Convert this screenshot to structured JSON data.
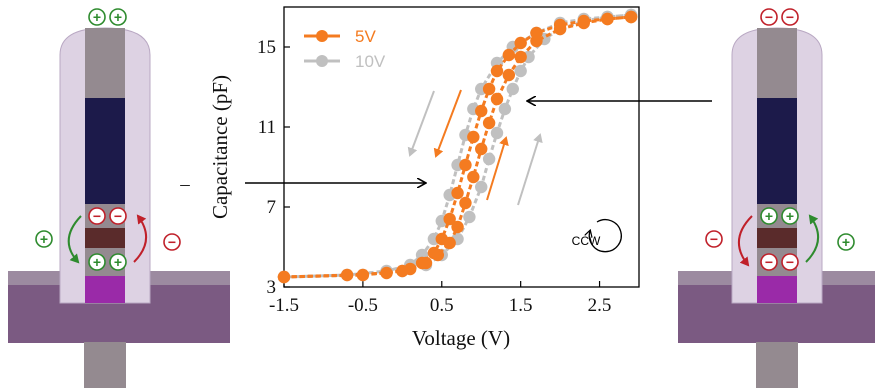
{
  "chart_data": {
    "type": "line",
    "title": "",
    "xlabel": "Voltage (V)",
    "ylabel": "Capacitance (pF)",
    "xlim": [
      -1.5,
      3.0
    ],
    "ylim": [
      3,
      17
    ],
    "xticks": [
      "-1.5",
      "-0.5",
      "0.5",
      "1.5",
      "2.5"
    ],
    "yticks": [
      "3",
      "7",
      "11",
      "15"
    ],
    "grid": false,
    "legend_position": "top-left",
    "annotation": "CCW",
    "series": [
      {
        "name": "5V",
        "color": "#f47b20",
        "x_sweep_up": [
          -1.5,
          -0.7,
          -0.2,
          0.1,
          0.3,
          0.45,
          0.6,
          0.7,
          0.8,
          0.9,
          1.0,
          1.1,
          1.2,
          1.35,
          1.5,
          1.7,
          2.0,
          2.3,
          2.6,
          2.9
        ],
        "y_sweep_up": [
          3.5,
          3.6,
          3.7,
          3.9,
          4.2,
          4.6,
          5.2,
          6.0,
          7.2,
          8.5,
          9.9,
          11.2,
          12.4,
          13.6,
          14.5,
          15.3,
          15.9,
          16.2,
          16.4,
          16.5
        ],
        "x_sweep_down": [
          2.9,
          2.6,
          2.3,
          2.0,
          1.7,
          1.5,
          1.35,
          1.2,
          1.1,
          1.0,
          0.9,
          0.8,
          0.7,
          0.6,
          0.5,
          0.4,
          0.25,
          0.0,
          -0.5,
          -1.5
        ],
        "y_sweep_down": [
          16.5,
          16.4,
          16.3,
          16.1,
          15.7,
          15.2,
          14.6,
          13.8,
          12.9,
          11.8,
          10.5,
          9.1,
          7.7,
          6.4,
          5.4,
          4.7,
          4.2,
          3.8,
          3.6,
          3.5
        ]
      },
      {
        "name": "10V",
        "color": "#c0c0c0",
        "x_sweep_up": [
          -1.5,
          -0.5,
          0.0,
          0.3,
          0.5,
          0.7,
          0.85,
          1.0,
          1.1,
          1.2,
          1.3,
          1.4,
          1.5,
          1.6,
          1.8,
          2.0,
          2.3,
          2.6,
          2.9
        ],
        "y_sweep_up": [
          3.5,
          3.6,
          3.8,
          4.1,
          4.6,
          5.4,
          6.5,
          8.0,
          9.4,
          10.7,
          11.9,
          12.9,
          13.8,
          14.5,
          15.4,
          15.9,
          16.3,
          16.5,
          16.6
        ],
        "x_sweep_down": [
          2.9,
          2.6,
          2.3,
          2.0,
          1.7,
          1.4,
          1.2,
          1.0,
          0.9,
          0.8,
          0.7,
          0.6,
          0.5,
          0.4,
          0.25,
          0.1,
          -0.2,
          -0.7,
          -1.5
        ],
        "y_sweep_down": [
          16.6,
          16.5,
          16.4,
          16.2,
          15.7,
          15.0,
          14.2,
          12.9,
          11.9,
          10.6,
          9.1,
          7.6,
          6.3,
          5.4,
          4.6,
          4.1,
          3.8,
          3.6,
          3.5
        ]
      }
    ]
  },
  "device_left": {
    "top_charge": [
      "+",
      "+"
    ],
    "upper_charges": [
      "−",
      "−"
    ],
    "lower_charges": [
      "+",
      "+"
    ],
    "left_flow_sign": "+",
    "right_flow_sign": "−",
    "label": "–"
  },
  "device_right": {
    "top_charge": [
      "−",
      "−"
    ],
    "upper_charges": [
      "+",
      "+"
    ],
    "lower_charges": [
      "−",
      "−"
    ],
    "left_flow_sign": "−",
    "right_flow_sign": "+"
  },
  "colors": {
    "orange": "#f47b20",
    "gray": "#c0c0c0",
    "green": "#2e8b2e",
    "red": "#c0202a",
    "navy": "#1c1a4a",
    "brown": "#5a2b2b",
    "magenta": "#9a2aa8",
    "lavender": "#ddd2e3",
    "gate_gray": "#948a90",
    "substrate": "#7a5a80"
  }
}
